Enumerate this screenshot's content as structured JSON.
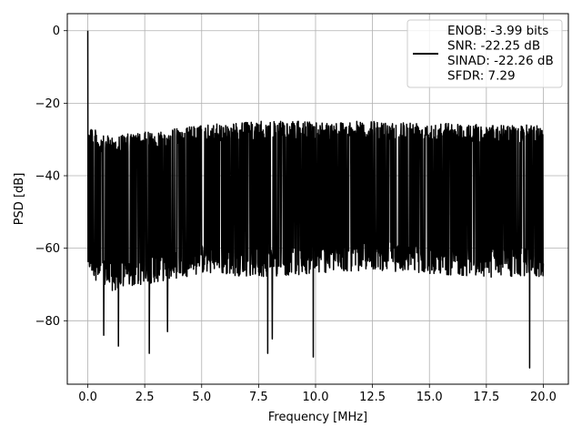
{
  "chart_data": {
    "type": "line",
    "xlabel": "Frequency [MHz]",
    "ylabel": "PSD [dB]",
    "xlim": [
      -0.9,
      21.1
    ],
    "ylim": [
      -97.5,
      4.7
    ],
    "xticks": [
      0.0,
      2.5,
      5.0,
      7.5,
      10.0,
      12.5,
      15.0,
      17.5,
      20.0
    ],
    "xtick_labels": [
      "0.0",
      "2.5",
      "5.0",
      "7.5",
      "10.0",
      "12.5",
      "15.0",
      "17.5",
      "20.0"
    ],
    "yticks": [
      0,
      -20,
      -40,
      -60,
      -80
    ],
    "ytick_labels": [
      "0",
      "−20",
      "−40",
      "−60",
      "−80"
    ],
    "grid": true,
    "legend_position": "top-right",
    "series": [
      {
        "legend_lines": [
          "ENOB: -3.99 bits",
          "SNR: -22.25 dB",
          "SINAD: -22.26 dB",
          "SFDR: 7.29"
        ],
        "color": "#000000",
        "peak": {
          "x": 0.0,
          "y": 0.0
        },
        "noise_envelope": {
          "x": [
            0.0,
            0.5,
            1.0,
            2.5,
            5.0,
            7.5,
            10.0,
            12.5,
            15.0,
            17.5,
            20.0
          ],
          "upper": [
            -24,
            -29,
            -29,
            -28,
            -26,
            -25,
            -25,
            -25,
            -25,
            -26,
            -26
          ],
          "lower": [
            -66,
            -70,
            -72,
            -70,
            -67,
            -68,
            -67,
            -66,
            -67,
            -68,
            -68
          ]
        },
        "deep_dips": [
          {
            "x": 0.7,
            "y": -84
          },
          {
            "x": 1.35,
            "y": -87
          },
          {
            "x": 2.7,
            "y": -89
          },
          {
            "x": 3.5,
            "y": -83
          },
          {
            "x": 7.9,
            "y": -89
          },
          {
            "x": 8.1,
            "y": -85
          },
          {
            "x": 9.9,
            "y": -90
          },
          {
            "x": 19.4,
            "y": -93
          }
        ]
      }
    ]
  }
}
